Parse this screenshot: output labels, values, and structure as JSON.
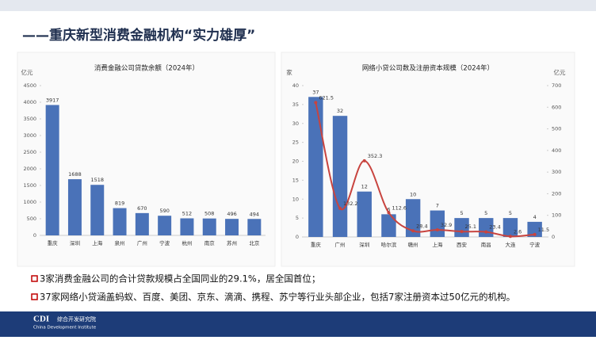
{
  "title": "——重庆新型消费金融机构“实力雄厚”",
  "bullets": [
    "3家消费金融公司的合计贷款规模占全国同业的29.1%，居全国首位；",
    "37家网络小贷涵盖蚂蚁、百度、美团、京东、滴滴、携程、苏宁等行业头部企业，包括7家注册资本过50亿元的机构。"
  ],
  "footer": {
    "logo": "CDI",
    "name": "综合开发研究院",
    "name_en": "China Development Institute"
  },
  "chart_data": [
    {
      "type": "bar",
      "title": "消费金融公司贷款余额（2024年）",
      "y_label": "亿元",
      "categories": [
        "重庆",
        "深圳",
        "上海",
        "泉州",
        "广州",
        "宁波",
        "杭州",
        "南京",
        "苏州",
        "北京"
      ],
      "values": [
        3917,
        1688,
        1518,
        819,
        670,
        590,
        512,
        508,
        496,
        494
      ],
      "color": "#4a72b8",
      "ylim": [
        0,
        4500
      ],
      "yticks": [
        0,
        500,
        1000,
        1500,
        2000,
        2500,
        3000,
        3500,
        4000,
        4500
      ]
    },
    {
      "type": "combo",
      "title": "网络小贷公司数及注册资本规模（2024年）",
      "y_label": "家",
      "y2_label": "亿元",
      "categories": [
        "重庆",
        "广州",
        "深圳",
        "哈尔滨",
        "赣州",
        "上海",
        "西安",
        "南昌",
        "大连",
        "宁波"
      ],
      "series": [
        {
          "color": "#4a72b8",
          "values": [
            37,
            32,
            12,
            6,
            10,
            7,
            5,
            5,
            5,
            4
          ]
        },
        {
          "color": "#c8443f",
          "axis": "y2",
          "values": [
            621.5,
            132.2,
            352.3,
            112.6,
            28.4,
            32.9,
            25.1,
            23.4,
            2.6,
            11.5
          ]
        }
      ],
      "ylim": [
        0,
        40
      ],
      "yticks": [
        0,
        5,
        10,
        15,
        20,
        25,
        30,
        35,
        40
      ],
      "y2lim": [
        0,
        700
      ],
      "y2ticks": [
        0,
        100,
        200,
        300,
        400,
        500,
        600,
        700
      ]
    }
  ]
}
